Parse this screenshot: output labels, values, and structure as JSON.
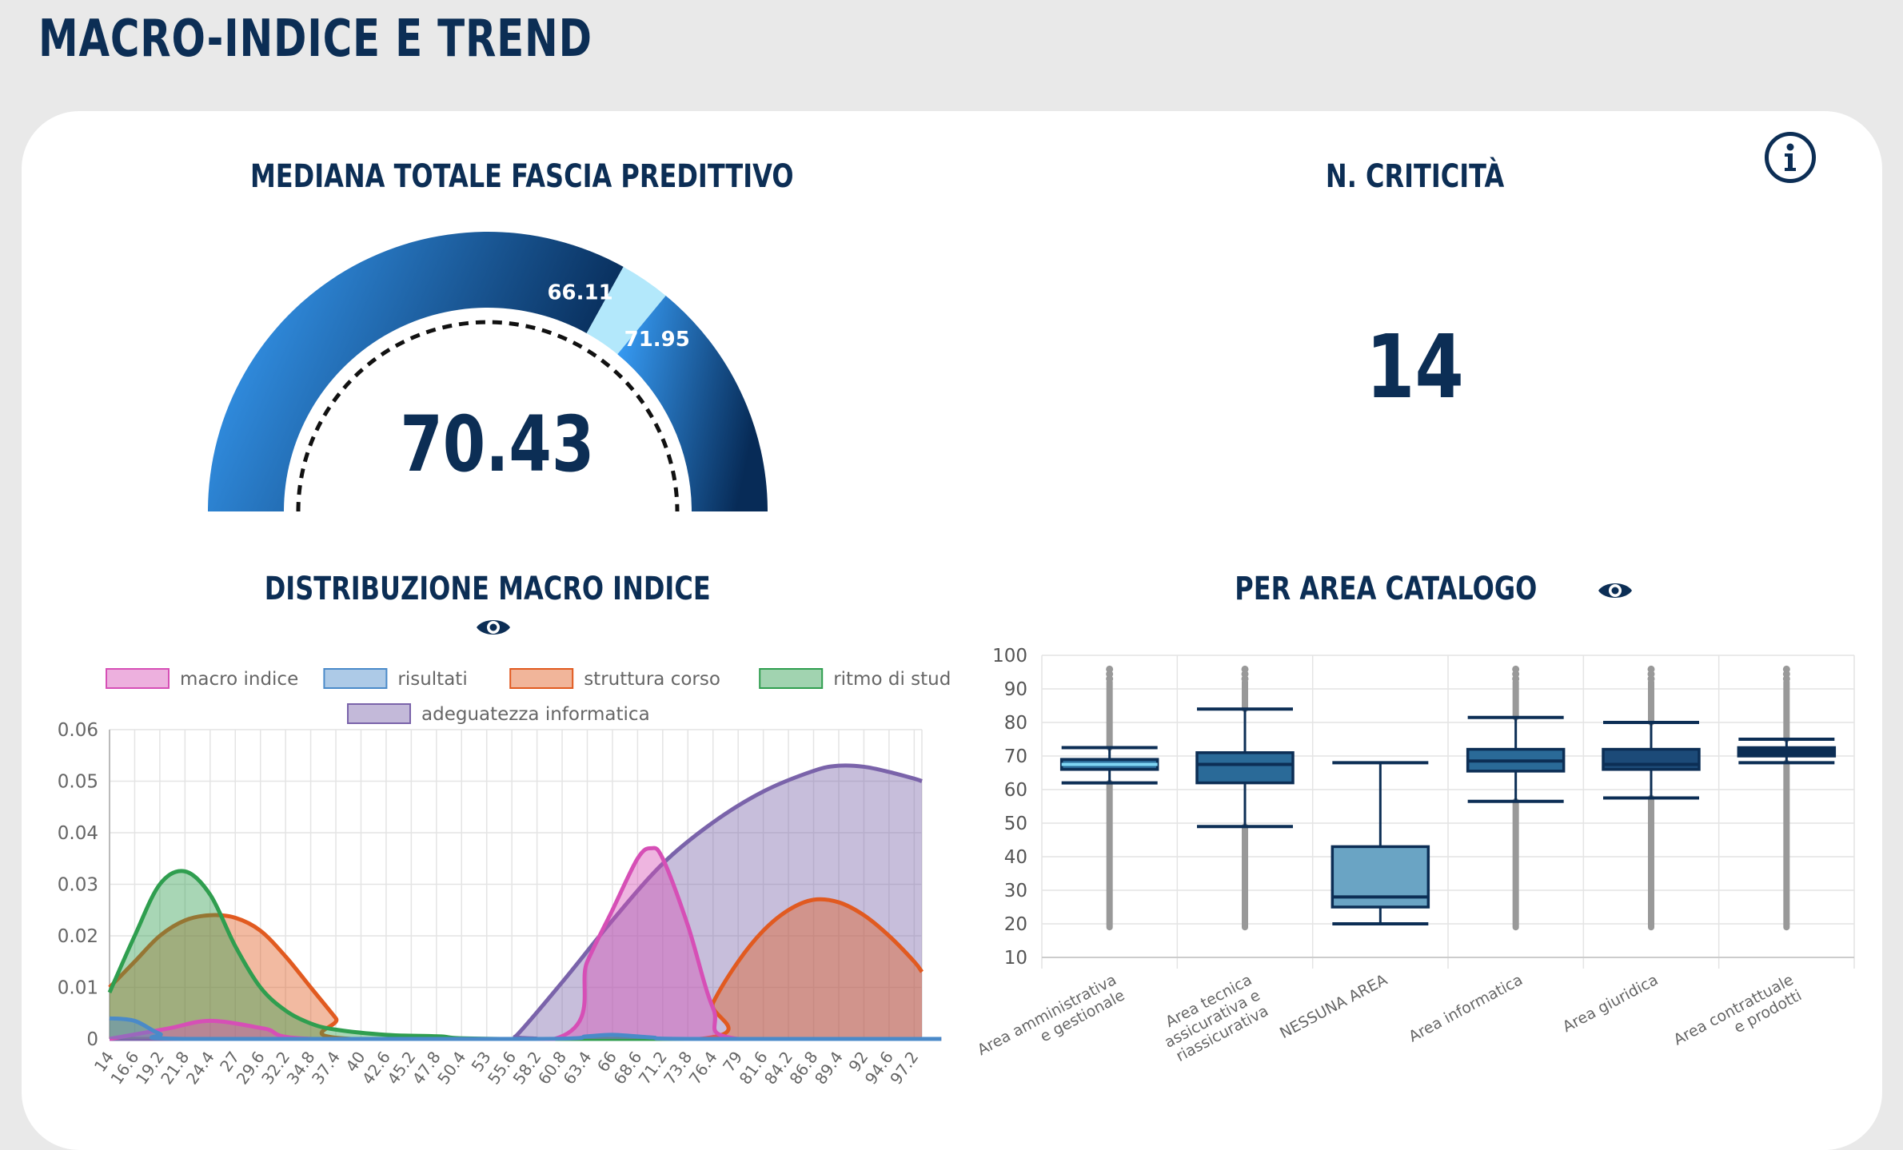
{
  "page": {
    "title": "MACRO-INDICE E TREND"
  },
  "gauge": {
    "title": "MEDIANA TOTALE FASCIA PREDITTIVO",
    "value": "70.43",
    "band_start_label": "66.11",
    "band_end_label": "71.95",
    "value_num": 70.43,
    "band_start": 66.11,
    "band_end": 71.95,
    "min": 0,
    "max": 100,
    "colors": {
      "dark": "#072b57",
      "light": "#3aa3ff",
      "band": "#b3e8fb"
    }
  },
  "kpi": {
    "title": "N. CRITICITÀ",
    "value": "14"
  },
  "info_icon": "info-circle-icon",
  "distribution": {
    "title": "DISTRIBUZIONE MACRO INDICE",
    "icon": "eye-icon"
  },
  "area_catalog": {
    "title": "PER AREA CATALOGO",
    "icon": "eye-icon"
  },
  "chart_data": [
    {
      "type": "area",
      "xlabel": "",
      "ylabel": "",
      "ylim": [
        0,
        0.06
      ],
      "y_ticks": [
        "0",
        "0.01",
        "0.02",
        "0.03",
        "0.04",
        "0.05",
        "0.06"
      ],
      "x_ticks": [
        "14",
        "16.6",
        "19.2",
        "21.8",
        "24.4",
        "27",
        "29.6",
        "32.2",
        "34.8",
        "37.4",
        "40",
        "42.6",
        "45.2",
        "47.8",
        "50.4",
        "53",
        "55.6",
        "58.2",
        "60.8",
        "63.4",
        "66",
        "68.6",
        "71.2",
        "73.8",
        "76.4",
        "79",
        "81.6",
        "84.2",
        "86.8",
        "89.4",
        "92",
        "94.6",
        "97.2"
      ],
      "legend_position": "top",
      "series": [
        {
          "name": "macro indice",
          "color": "#d64fb6",
          "points": [
            [
              14,
              0
            ],
            [
              20,
              0.002
            ],
            [
              24.4,
              0.0035
            ],
            [
              30,
              0.002
            ],
            [
              35,
              0
            ],
            [
              60,
              0
            ],
            [
              63.4,
              0.015
            ],
            [
              66,
              0.025
            ],
            [
              68.6,
              0.035
            ],
            [
              70,
              0.037
            ],
            [
              71.2,
              0.035
            ],
            [
              73.8,
              0.022
            ],
            [
              76.4,
              0.006
            ],
            [
              79,
              0
            ],
            [
              100,
              0
            ]
          ]
        },
        {
          "name": "risultati",
          "color": "#4a8ac9",
          "points": [
            [
              14,
              0.004
            ],
            [
              16.6,
              0.0035
            ],
            [
              19.2,
              0.001
            ],
            [
              21.8,
              0
            ],
            [
              58,
              0
            ],
            [
              63.4,
              0.0005
            ],
            [
              66,
              0.0008
            ],
            [
              70,
              0.0003
            ],
            [
              73.8,
              0
            ],
            [
              100,
              0
            ]
          ]
        },
        {
          "name": "struttura corso",
          "color": "#e15a20",
          "points": [
            [
              14,
              0.01
            ],
            [
              16.6,
              0.015
            ],
            [
              19.2,
              0.02
            ],
            [
              21.8,
              0.023
            ],
            [
              24.4,
              0.024
            ],
            [
              27,
              0.0235
            ],
            [
              29.6,
              0.021
            ],
            [
              32.2,
              0.016
            ],
            [
              34.8,
              0.01
            ],
            [
              37.4,
              0.004
            ],
            [
              39,
              0
            ],
            [
              75,
              0
            ],
            [
              76.4,
              0.007
            ],
            [
              79,
              0.015
            ],
            [
              81.6,
              0.021
            ],
            [
              84.2,
              0.025
            ],
            [
              86.8,
              0.027
            ],
            [
              89.4,
              0.0265
            ],
            [
              92,
              0.024
            ],
            [
              94.6,
              0.02
            ],
            [
              97.2,
              0.015
            ],
            [
              98,
              0.013
            ]
          ]
        },
        {
          "name": "ritmo di studio",
          "color": "#2f9e4f",
          "points": [
            [
              14,
              0.009
            ],
            [
              16.6,
              0.02
            ],
            [
              19.2,
              0.03
            ],
            [
              21.8,
              0.0325
            ],
            [
              24.4,
              0.028
            ],
            [
              27,
              0.018
            ],
            [
              29.6,
              0.01
            ],
            [
              32.2,
              0.0055
            ],
            [
              34.8,
              0.003
            ],
            [
              37.4,
              0.0018
            ],
            [
              42.6,
              0.0008
            ],
            [
              48,
              0.0005
            ],
            [
              55.6,
              0
            ],
            [
              100,
              0
            ]
          ]
        },
        {
          "name": "adeguatezza informatica",
          "color": "#7a63aa",
          "points": [
            [
              14,
              0
            ],
            [
              55,
              0
            ],
            [
              56,
              0.0005
            ],
            [
              60.8,
              0.011
            ],
            [
              66,
              0.023
            ],
            [
              71.2,
              0.034
            ],
            [
              76.4,
              0.042
            ],
            [
              81.6,
              0.048
            ],
            [
              86.8,
              0.052
            ],
            [
              89.4,
              0.053
            ],
            [
              92,
              0.0528
            ],
            [
              94.6,
              0.0518
            ],
            [
              97.2,
              0.0505
            ],
            [
              98,
              0.05
            ]
          ]
        }
      ]
    },
    {
      "type": "box",
      "ylim": [
        10,
        100
      ],
      "y_ticks": [
        "10",
        "20",
        "30",
        "40",
        "50",
        "60",
        "70",
        "80",
        "90",
        "100"
      ],
      "categories": [
        "Area amministrativa e gestionale",
        "Area tecnica assicurativa e riassicurativa",
        "NESSUNA AREA",
        "Area informatica",
        "Area giuridica",
        "Area contrattuale e prodotti"
      ],
      "category_lines": [
        [
          "Area amministrativa",
          "e gestionale"
        ],
        [
          "Area tecnica",
          "assicurativa e",
          "riassicurativa"
        ],
        [
          "NESSUNA AREA"
        ],
        [
          "Area informatica"
        ],
        [
          "Area giuridica"
        ],
        [
          "Area contrattuale",
          "e prodotti"
        ]
      ],
      "boxes": [
        {
          "whisker_low": 62,
          "q1": 66,
          "median": 67.5,
          "q3": 69,
          "whisker_high": 72.5,
          "outlier_low": 19,
          "outlier_high": 93,
          "fill": "#2a6a98"
        },
        {
          "whisker_low": 49,
          "q1": 62,
          "median": 67.5,
          "q3": 71,
          "whisker_high": 84,
          "outlier_low": 19,
          "outlier_high": 93,
          "fill": "#2a6a98"
        },
        {
          "whisker_low": 20,
          "q1": 25,
          "median": 28,
          "q3": 43,
          "whisker_high": 68,
          "outlier_low": null,
          "outlier_high": null,
          "fill": "#6aa4c4"
        },
        {
          "whisker_low": 56.5,
          "q1": 65.5,
          "median": 68.5,
          "q3": 72,
          "whisker_high": 81.5,
          "outlier_low": 19,
          "outlier_high": 93,
          "fill": "#2a6a98"
        },
        {
          "whisker_low": 57.5,
          "q1": 66,
          "median": 67.5,
          "q3": 72,
          "whisker_high": 80,
          "outlier_low": 19,
          "outlier_high": 93,
          "fill": "#1c4a78"
        },
        {
          "whisker_low": 68,
          "q1": 70,
          "median": 71,
          "q3": 72.5,
          "whisker_high": 75,
          "outlier_low": 19,
          "outlier_high": 93,
          "fill": "#0c2e55"
        }
      ]
    }
  ]
}
